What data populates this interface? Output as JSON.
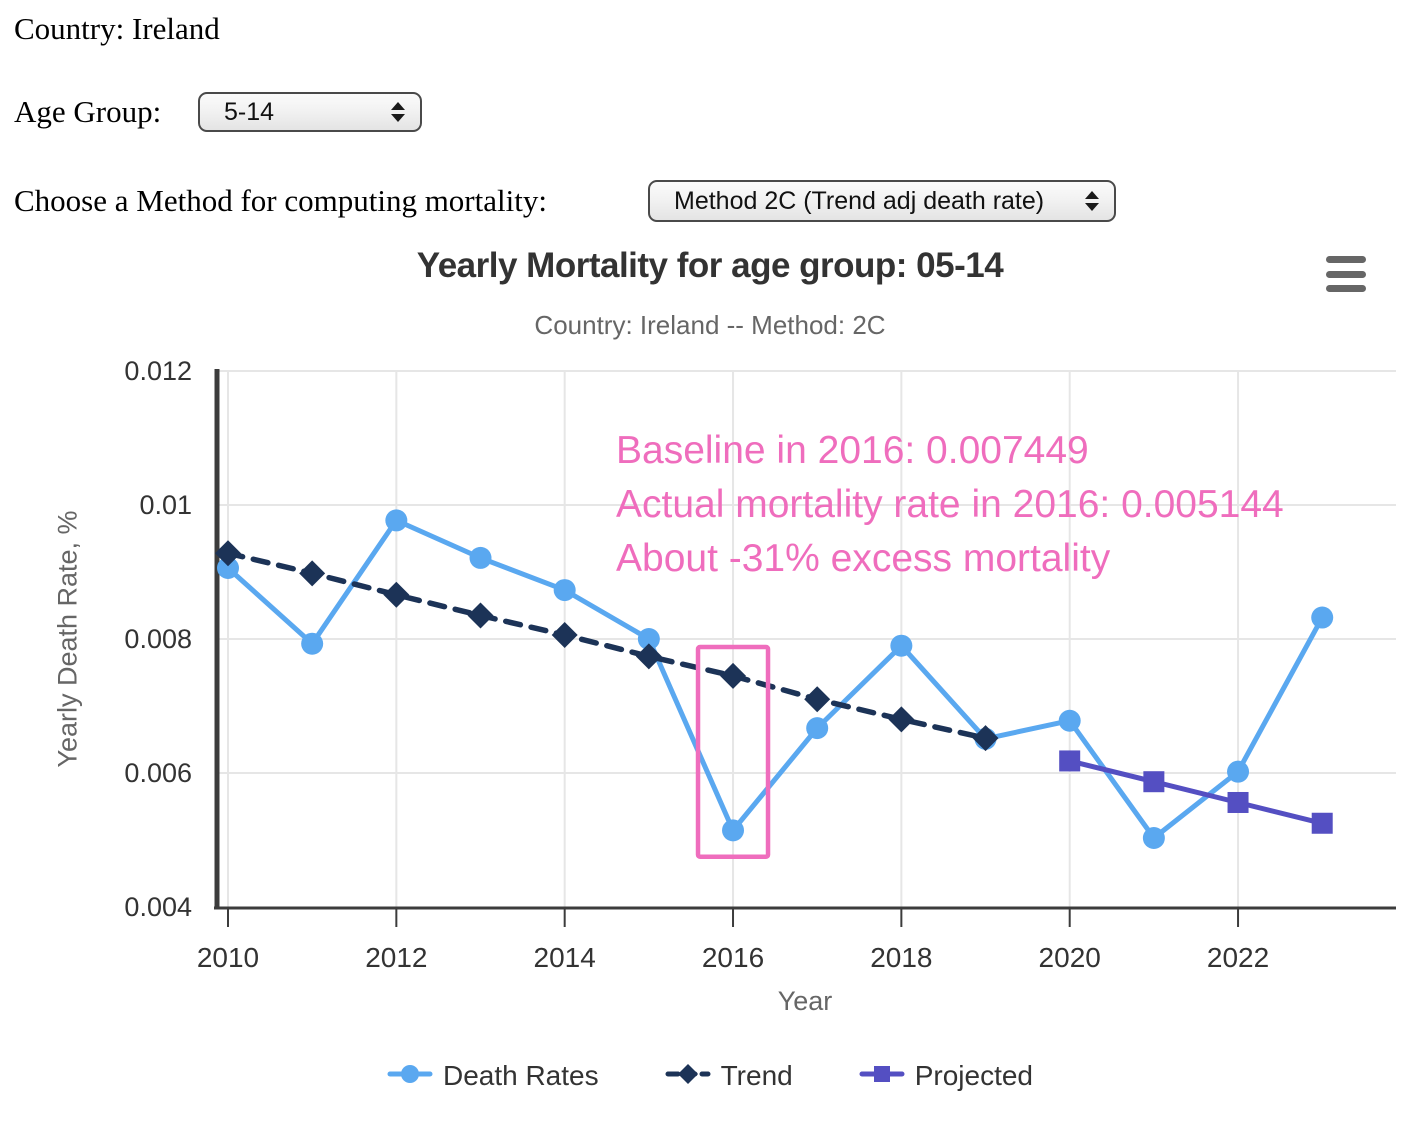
{
  "page": {
    "country_line": "Country: Ireland",
    "age_group_label": "Age Group:",
    "age_group_value": "5-14",
    "method_label": "Choose a Method for computing mortality:",
    "method_value": "Method 2C (Trend adj death rate)"
  },
  "chart_data": {
    "type": "line",
    "title": "Yearly Mortality for age group: 05-14",
    "subtitle": "Country: Ireland -- Method: 2C",
    "xlabel": "Year",
    "ylabel": "Yearly Death Rate, %",
    "x_tick_years": [
      2010,
      2012,
      2014,
      2016,
      2018,
      2020,
      2022
    ],
    "x_tick_labels": [
      "2010",
      "2012",
      "2014",
      "2016",
      "2018",
      "2020",
      "2022"
    ],
    "y_tick_values": [
      0.004,
      0.006,
      0.008,
      0.01,
      0.012
    ],
    "y_tick_labels": [
      "0.004",
      "0.006",
      "0.008",
      "0.01",
      "0.012"
    ],
    "ylim": [
      0.004,
      0.012
    ],
    "xlim_years": [
      2009.85,
      2023.9
    ],
    "grid": true,
    "legend_position": "bottom",
    "series": [
      {
        "name": "Death Rates",
        "color": "#5aa8f0",
        "marker": "circle",
        "line": "solid",
        "z": 1,
        "years": [
          2010,
          2011,
          2012,
          2013,
          2014,
          2015,
          2016,
          2017,
          2018,
          2019,
          2020,
          2021,
          2022,
          2023
        ],
        "values": [
          0.00906,
          0.00793,
          0.00977,
          0.00921,
          0.00873,
          0.008,
          0.005144,
          0.00667,
          0.0079,
          0.00651,
          0.00678,
          0.00503,
          0.00602,
          0.00832
        ]
      },
      {
        "name": "Trend",
        "color": "#1c3357",
        "marker": "diamond",
        "line": "dashed",
        "z": 3,
        "years": [
          2010,
          2011,
          2012,
          2013,
          2014,
          2015,
          2016,
          2017,
          2018,
          2019
        ],
        "values": [
          0.00928,
          0.00898,
          0.00866,
          0.00835,
          0.00806,
          0.00774,
          0.007449,
          0.0071,
          0.0068,
          0.00652
        ]
      },
      {
        "name": "Projected",
        "color": "#544fc2",
        "marker": "square",
        "line": "solid",
        "z": 2,
        "years": [
          2020,
          2021,
          2022,
          2023
        ],
        "values": [
          0.00618,
          0.00587,
          0.00556,
          0.00525
        ]
      }
    ],
    "annotation": {
      "color": "#ef6dbd",
      "lines": [
        "Baseline in 2016: 0.007449",
        "Actual mortality rate in 2016: 0.005144",
        "About -31% excess mortality"
      ]
    },
    "highlight_rect": {
      "x_year": 2016,
      "y_top": 0.00788,
      "y_bottom": 0.00475,
      "color": "#ef6dbd"
    },
    "colors": {
      "grid": "#e6e6e6",
      "axis": "#3c3c3c",
      "tick_label": "#333333",
      "axis_title": "#666666"
    }
  }
}
